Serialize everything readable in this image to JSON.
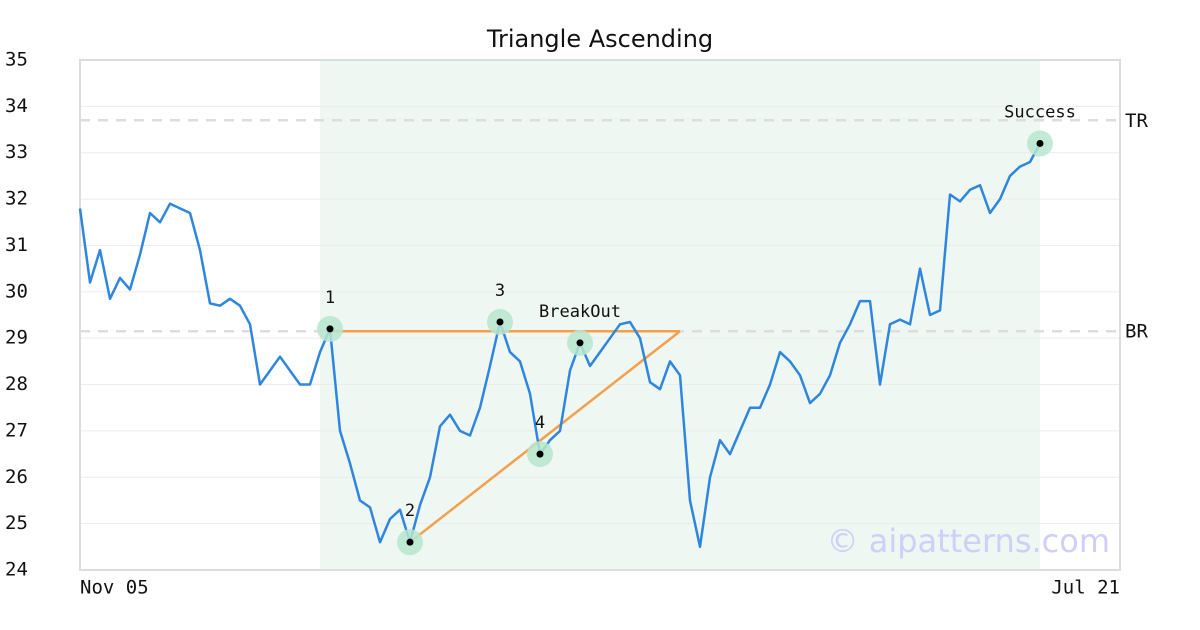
{
  "chart_data": {
    "type": "line",
    "title": "Triangle Ascending",
    "categories": [
      "Nov 05",
      null,
      null,
      null,
      null,
      null,
      null,
      null,
      null,
      null,
      null,
      null,
      null,
      null,
      null,
      null,
      null,
      null,
      null,
      null,
      null,
      null,
      null,
      null,
      null,
      null,
      null,
      null,
      null,
      null,
      null,
      null,
      null,
      null,
      null,
      null,
      null,
      null,
      null,
      null,
      null,
      null,
      null,
      null,
      null,
      null,
      null,
      null,
      null,
      null,
      null,
      null,
      null,
      null,
      null,
      null,
      null,
      null,
      null,
      null,
      null,
      null,
      null,
      null,
      null,
      null,
      null,
      null,
      null,
      null,
      null,
      null,
      null,
      null,
      null,
      null,
      null,
      null,
      null,
      null,
      null,
      null,
      null,
      null,
      null,
      null,
      null,
      null,
      null,
      null,
      null,
      null,
      null,
      null,
      null,
      null,
      null,
      null,
      null,
      null,
      null,
      null,
      null,
      null,
      "Jul 21"
    ],
    "values": [
      31.8,
      30.2,
      30.9,
      29.85,
      30.3,
      30.05,
      30.8,
      31.7,
      31.5,
      31.9,
      31.8,
      31.7,
      30.9,
      29.75,
      29.7,
      29.85,
      29.7,
      29.3,
      28.0,
      28.3,
      28.6,
      28.3,
      28.0,
      28.0,
      28.7,
      29.2,
      27.0,
      26.3,
      25.5,
      25.35,
      24.6,
      25.1,
      25.3,
      24.6,
      25.4,
      26.0,
      27.1,
      27.35,
      27.0,
      26.9,
      27.5,
      28.4,
      29.35,
      28.7,
      28.5,
      27.8,
      26.5,
      26.8,
      27.0,
      28.3,
      28.9,
      28.4,
      28.7,
      29.0,
      29.3,
      29.35,
      29.0,
      28.05,
      27.9,
      28.5,
      28.2,
      25.5,
      24.5,
      26.0,
      26.8,
      26.5,
      27.0,
      27.5,
      27.5,
      28.0,
      28.7,
      28.5,
      28.2,
      27.6,
      27.8,
      28.2,
      28.9,
      29.3,
      29.8,
      29.8,
      28.0,
      29.3,
      29.4,
      29.3,
      30.5,
      29.5,
      29.6,
      32.1,
      31.95,
      32.2,
      32.3,
      31.7,
      32.0,
      32.5,
      32.7,
      32.8,
      33.2,
      null,
      null,
      null,
      null,
      null,
      null,
      null,
      null
    ],
    "color": "#2e86de",
    "ylim": [
      24,
      35
    ],
    "yticks": [
      24,
      25,
      26,
      27,
      28,
      29,
      30,
      31,
      32,
      33,
      34,
      35
    ],
    "grid": true,
    "highlight": [
      24,
      96
    ],
    "levels": [
      {
        "label": "TR",
        "value": 33.7
      },
      {
        "label": "BR",
        "value": 29.15
      }
    ],
    "pattern_lines": [
      {
        "x": [
          25,
          60
        ],
        "y": [
          29.15,
          29.15
        ],
        "color": "#f4a04a"
      },
      {
        "x": [
          33,
          60
        ],
        "y": [
          24.6,
          29.15
        ],
        "color": "#f4a04a"
      }
    ],
    "annotations": [
      {
        "text": "1",
        "x": 25,
        "y": 29.2
      },
      {
        "text": "2",
        "x": 33,
        "y": 24.6
      },
      {
        "text": "3",
        "x": 42,
        "y": 29.35
      },
      {
        "text": "4",
        "x": 46,
        "y": 26.5
      },
      {
        "text": "BreakOut",
        "x": 50,
        "y": 28.9
      },
      {
        "text": "Success",
        "x": 96,
        "y": 33.2
      }
    ],
    "watermark": "© aipatterns.com"
  }
}
